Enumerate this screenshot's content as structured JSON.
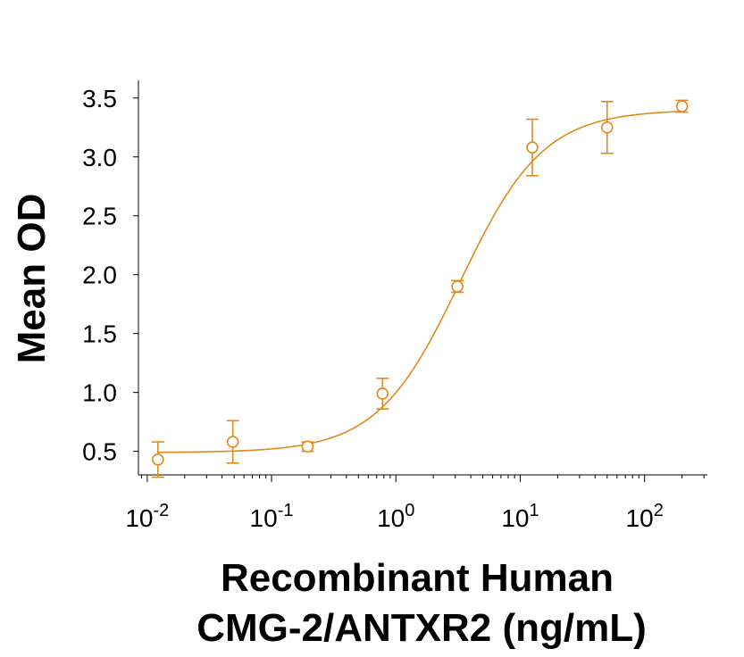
{
  "chart_data": {
    "type": "scatter",
    "title": "",
    "xlabel": [
      "Recombinant Human",
      "CMG-2/ANTXR2 (ng/mL)"
    ],
    "ylabel": "Mean OD",
    "x_scale": "log",
    "xlim": [
      0.0085,
      320
    ],
    "ylim": [
      0.3,
      3.65
    ],
    "x_ticks": [
      {
        "value": 0.01,
        "base": "10",
        "exp": "-2"
      },
      {
        "value": 0.1,
        "base": "10",
        "exp": "-1"
      },
      {
        "value": 1,
        "base": "10",
        "exp": "0"
      },
      {
        "value": 10,
        "base": "10",
        "exp": "1"
      },
      {
        "value": 100,
        "base": "10",
        "exp": "2"
      }
    ],
    "y_ticks": [
      "0.5",
      "1.0",
      "1.5",
      "2.0",
      "2.5",
      "3.0",
      "3.5"
    ],
    "grid": false,
    "legend": "none",
    "color": "#E08A1E",
    "series": [
      {
        "marker": "open-circle",
        "points": [
          {
            "x": 0.0122,
            "y": 0.43,
            "err": 0.15
          },
          {
            "x": 0.0488,
            "y": 0.58,
            "err": 0.18
          },
          {
            "x": 0.195,
            "y": 0.54,
            "err": 0.04
          },
          {
            "x": 0.781,
            "y": 0.99,
            "err": 0.13
          },
          {
            "x": 3.125,
            "y": 1.9,
            "err": 0.05
          },
          {
            "x": 12.5,
            "y": 3.08,
            "err": 0.24
          },
          {
            "x": 50,
            "y": 3.25,
            "err": 0.22
          },
          {
            "x": 200,
            "y": 3.43,
            "err": 0.05
          }
        ]
      }
    ],
    "fit_curve": {
      "model": "4PL",
      "bottom": 0.49,
      "top": 3.4,
      "ec50": 3.3,
      "hill": 1.3
    }
  }
}
